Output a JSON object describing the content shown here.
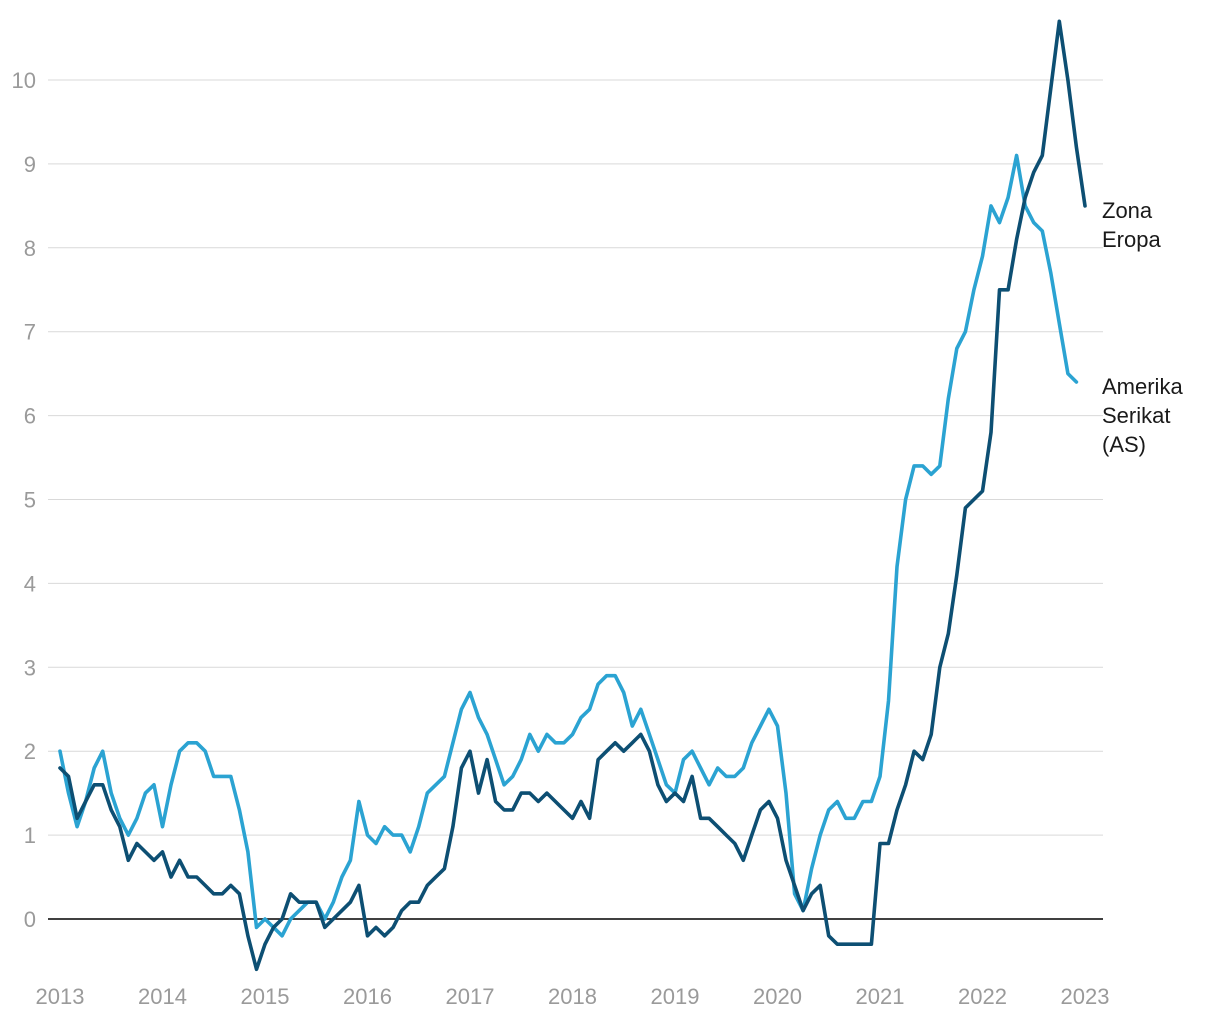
{
  "chart_data": {
    "type": "line",
    "title": "",
    "xlabel": "",
    "ylabel": "",
    "xlim": [
      2013,
      2023
    ],
    "ylim": [
      -0.6,
      10.7
    ],
    "y_ticks": [
      0,
      1,
      2,
      3,
      4,
      5,
      6,
      7,
      8,
      9,
      10
    ],
    "x_ticks": [
      "2013",
      "2014",
      "2015",
      "2016",
      "2017",
      "2018",
      "2019",
      "2020",
      "2021",
      "2022",
      "2023"
    ],
    "grid": true,
    "legend": "end-of-line labels",
    "series": [
      {
        "name": "Zona Eropa",
        "label_lines": [
          "Zona",
          "Eropa"
        ],
        "color": "#0d4f73",
        "x_start": 2013.0,
        "step": 0.08333,
        "values": [
          1.8,
          1.7,
          1.2,
          1.4,
          1.6,
          1.6,
          1.3,
          1.1,
          0.7,
          0.9,
          0.8,
          0.7,
          0.8,
          0.5,
          0.7,
          0.5,
          0.5,
          0.4,
          0.3,
          0.3,
          0.4,
          0.3,
          -0.2,
          -0.6,
          -0.3,
          -0.1,
          0.0,
          0.3,
          0.2,
          0.2,
          0.2,
          -0.1,
          0.0,
          0.1,
          0.2,
          0.4,
          -0.2,
          -0.1,
          -0.2,
          -0.1,
          0.1,
          0.2,
          0.2,
          0.4,
          0.5,
          0.6,
          1.1,
          1.8,
          2.0,
          1.5,
          1.9,
          1.4,
          1.3,
          1.3,
          1.5,
          1.5,
          1.4,
          1.5,
          1.4,
          1.3,
          1.2,
          1.4,
          1.2,
          1.9,
          2.0,
          2.1,
          2.0,
          2.1,
          2.2,
          2.0,
          1.6,
          1.4,
          1.5,
          1.4,
          1.7,
          1.2,
          1.2,
          1.1,
          1.0,
          0.9,
          0.7,
          1.0,
          1.3,
          1.4,
          1.2,
          0.7,
          0.4,
          0.1,
          0.3,
          0.4,
          -0.2,
          -0.3,
          -0.3,
          -0.3,
          -0.3,
          -0.3,
          0.9,
          0.9,
          1.3,
          1.6,
          2.0,
          1.9,
          2.2,
          3.0,
          3.4,
          4.1,
          4.9,
          5.0,
          5.1,
          5.8,
          7.5,
          7.5,
          8.1,
          8.6,
          8.9,
          9.1,
          9.9,
          10.7,
          10.0,
          9.2,
          8.5
        ]
      },
      {
        "name": "Amerika Serikat (AS)",
        "label_lines": [
          "Amerika",
          "Serikat",
          "(AS)"
        ],
        "color": "#2ba3d2",
        "x_start": 2013.0,
        "step": 0.08333,
        "values": [
          2.0,
          1.5,
          1.1,
          1.4,
          1.8,
          2.0,
          1.5,
          1.2,
          1.0,
          1.2,
          1.5,
          1.6,
          1.1,
          1.6,
          2.0,
          2.1,
          2.1,
          2.0,
          1.7,
          1.7,
          1.7,
          1.3,
          0.8,
          -0.1,
          0.0,
          -0.1,
          -0.2,
          0.0,
          0.1,
          0.2,
          0.2,
          0.0,
          0.2,
          0.5,
          0.7,
          1.4,
          1.0,
          0.9,
          1.1,
          1.0,
          1.0,
          0.8,
          1.1,
          1.5,
          1.6,
          1.7,
          2.1,
          2.5,
          2.7,
          2.4,
          2.2,
          1.9,
          1.6,
          1.7,
          1.9,
          2.2,
          2.0,
          2.2,
          2.1,
          2.1,
          2.2,
          2.4,
          2.5,
          2.8,
          2.9,
          2.9,
          2.7,
          2.3,
          2.5,
          2.2,
          1.9,
          1.6,
          1.5,
          1.9,
          2.0,
          1.8,
          1.6,
          1.8,
          1.7,
          1.7,
          1.8,
          2.1,
          2.3,
          2.5,
          2.3,
          1.5,
          0.3,
          0.1,
          0.6,
          1.0,
          1.3,
          1.4,
          1.2,
          1.2,
          1.4,
          1.4,
          1.7,
          2.6,
          4.2,
          5.0,
          5.4,
          5.4,
          5.3,
          5.4,
          6.2,
          6.8,
          7.0,
          7.5,
          7.9,
          8.5,
          8.3,
          8.6,
          9.1,
          8.5,
          8.3,
          8.2,
          7.7,
          7.1,
          6.5,
          6.4
        ]
      }
    ]
  }
}
